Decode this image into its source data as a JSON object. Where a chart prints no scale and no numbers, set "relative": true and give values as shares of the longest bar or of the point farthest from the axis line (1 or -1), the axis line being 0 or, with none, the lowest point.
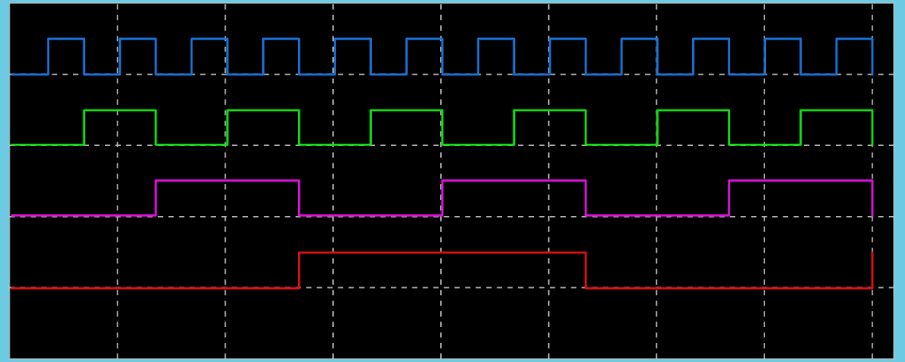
{
  "chart_data": {
    "type": "step",
    "relative": true,
    "grid": true,
    "marker": "none",
    "line_style": "solid",
    "legend": false,
    "categories": [
      null,
      null,
      null,
      null,
      null,
      null,
      null,
      null,
      null,
      null,
      null,
      null,
      null,
      null,
      null,
      null,
      null,
      null,
      null,
      null,
      null,
      null,
      null,
      null,
      null
    ],
    "series": [
      {
        "color": "#1a73d9",
        "values": [
          0.857,
          1,
          0.857,
          1,
          0.857,
          1,
          0.857,
          1,
          0.857,
          1,
          0.857,
          1,
          0.857,
          1,
          0.857,
          1,
          0.857,
          1,
          0.857,
          1,
          0.857,
          1,
          0.857,
          1,
          0.857
        ]
      },
      {
        "color": "#10e010",
        "values": [
          0.575,
          0.575,
          0.714,
          0.714,
          0.575,
          0.575,
          0.714,
          0.714,
          0.575,
          0.575,
          0.714,
          0.714,
          0.575,
          0.575,
          0.714,
          0.714,
          0.575,
          0.575,
          0.714,
          0.714,
          0.575,
          0.575,
          0.714,
          0.714,
          0.575
        ]
      },
      {
        "color": "#e010e0",
        "values": [
          0.292,
          0.292,
          0.292,
          0.292,
          0.432,
          0.432,
          0.432,
          0.432,
          0.292,
          0.292,
          0.292,
          0.292,
          0.432,
          0.432,
          0.432,
          0.432,
          0.292,
          0.292,
          0.292,
          0.292,
          0.432,
          0.432,
          0.432,
          0.432,
          0.292
        ]
      },
      {
        "color": "#e01010",
        "values": [
          0,
          0,
          0,
          0,
          0,
          0,
          0,
          0,
          0.143,
          0.143,
          0.143,
          0.143,
          0.143,
          0.143,
          0.143,
          0.143,
          0,
          0,
          0,
          0,
          0,
          0,
          0,
          0,
          0.143
        ]
      }
    ]
  }
}
